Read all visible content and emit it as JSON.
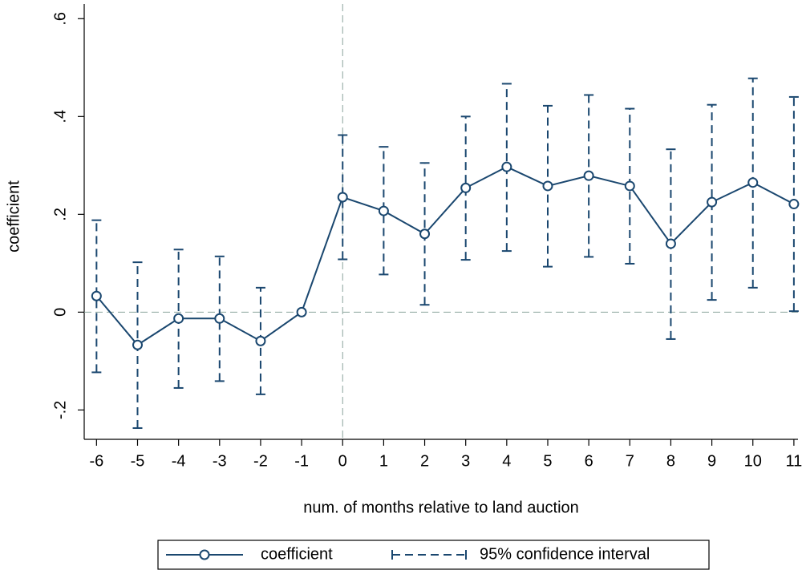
{
  "chart_data": {
    "type": "line",
    "x_label": "num. of months relative to land auction",
    "y_label": "coefficient",
    "x": [
      -6,
      -5,
      -4,
      -3,
      -2,
      -1,
      0,
      1,
      2,
      3,
      4,
      5,
      6,
      7,
      8,
      9,
      10,
      11
    ],
    "series": [
      {
        "name": "coefficient",
        "color": "#1a476f",
        "values": [
          0.033,
          -0.067,
          -0.013,
          -0.013,
          -0.059,
          0,
          0.235,
          0.207,
          0.16,
          0.254,
          0.297,
          0.258,
          0.279,
          0.258,
          0.14,
          0.225,
          0.265,
          0.221
        ]
      },
      {
        "name": "95% confidence interval",
        "color": "#1a476f",
        "lower": [
          -0.123,
          -0.237,
          -0.155,
          -0.141,
          -0.168,
          null,
          0.108,
          0.077,
          0.015,
          0.107,
          0.125,
          0.093,
          0.113,
          0.099,
          -0.055,
          0.025,
          0.05,
          0.002
        ],
        "upper": [
          0.188,
          0.102,
          0.128,
          0.114,
          0.05,
          null,
          0.362,
          0.338,
          0.305,
          0.4,
          0.467,
          0.422,
          0.444,
          0.416,
          0.333,
          0.424,
          0.478,
          0.44
        ]
      }
    ],
    "xlim": [
      -6.3,
      11.1
    ],
    "ylim": [
      -0.26,
      0.63
    ],
    "xticks": [
      -6,
      -5,
      -4,
      -3,
      -2,
      -1,
      0,
      1,
      2,
      3,
      4,
      5,
      6,
      7,
      8,
      9,
      10,
      11
    ],
    "yticks": [
      {
        "value": -0.2,
        "label": "-.2"
      },
      0,
      {
        "value": 0.2,
        "label": ".2"
      },
      {
        "value": 0.4,
        "label": ".4"
      },
      {
        "value": 0.6,
        "label": ".6"
      }
    ],
    "xline": 0,
    "yline": 0,
    "reference_color": "#8aa39b"
  }
}
